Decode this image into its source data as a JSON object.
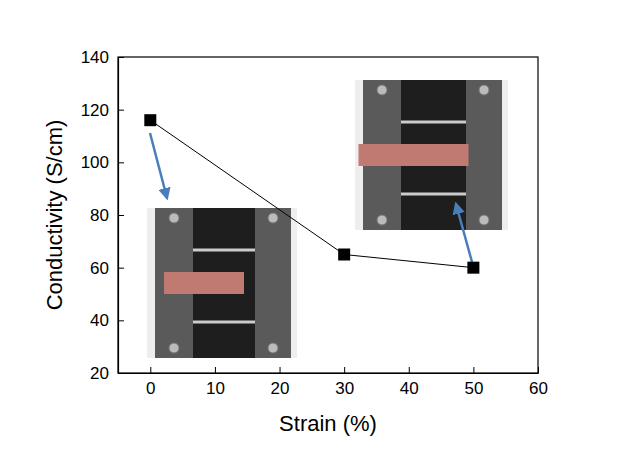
{
  "chart_data": {
    "type": "line",
    "x_label": "Strain (%)",
    "y_label": "Conductivity (S/cm)",
    "x": [
      0,
      30,
      50
    ],
    "values": [
      116,
      65,
      60
    ],
    "color": "#000000",
    "marker": "square",
    "line_style": "solid",
    "xlim": [
      -5,
      60
    ],
    "xticks": [
      0,
      10,
      20,
      30,
      40,
      50,
      60
    ],
    "ylim": [
      20,
      140
    ],
    "yticks": [
      20,
      40,
      60,
      80,
      100,
      120,
      140
    ],
    "grid": false
  }
}
